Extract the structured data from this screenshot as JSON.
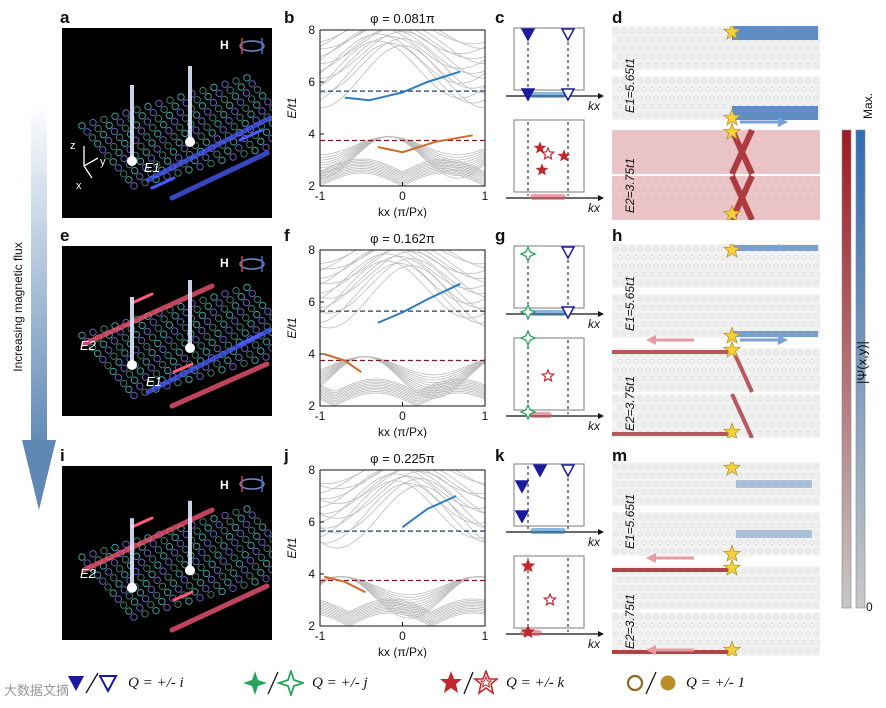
{
  "panel_labels": [
    "a",
    "b",
    "c",
    "d",
    "e",
    "f",
    "g",
    "h",
    "i",
    "j",
    "k",
    "m"
  ],
  "render_panels": [
    {
      "id": "a",
      "h_label": "H",
      "axes": {
        "z": "z",
        "y": "y",
        "x": "x"
      },
      "energy_labels": [
        "E1"
      ]
    },
    {
      "id": "e",
      "h_label": "H",
      "energy_labels": [
        "E2",
        "E1"
      ]
    },
    {
      "id": "i",
      "h_label": "H",
      "energy_labels": [
        "E2"
      ]
    }
  ],
  "side_arrow_label": "Increasing magnetic flux",
  "band_panels": [
    {
      "id": "b",
      "phi_label": "φ = 0.081π",
      "ylabel": "E/t1",
      "xlabel": "kx (π/Px)",
      "yticks": [
        "8",
        "6",
        "4",
        "2"
      ],
      "xticks": [
        "-1",
        "0",
        "1"
      ]
    },
    {
      "id": "f",
      "phi_label": "φ = 0.162π",
      "ylabel": "E/t1",
      "xlabel": "kx (π/Px)",
      "yticks": [
        "8",
        "6",
        "4",
        "2"
      ],
      "xticks": [
        "-1",
        "0",
        "1"
      ]
    },
    {
      "id": "j",
      "phi_label": "φ = 0.225π",
      "ylabel": "E/t1",
      "xlabel": "kx (π/Px)",
      "yticks": [
        "8",
        "6",
        "4",
        "2"
      ],
      "xticks": [
        "-1",
        "0",
        "1"
      ]
    }
  ],
  "bz_panels": [
    {
      "id": "c",
      "axis_label": "kx"
    },
    {
      "id": "g",
      "axis_label": "kx"
    },
    {
      "id": "k",
      "axis_label": "kx"
    }
  ],
  "wave_panels": [
    {
      "id": "d",
      "top_label": "E1=5.65t1",
      "bottom_label": "E2=3.75t1"
    },
    {
      "id": "h",
      "top_label": "E1=5.65t1",
      "bottom_label": "E2=3.75t1"
    },
    {
      "id": "m",
      "top_label": "E1=5.65t1",
      "bottom_label": "E2=3.75t1"
    }
  ],
  "colorbar": {
    "max_label": "Max.",
    "min_label": "0",
    "title": "|Ψ(x,y)|",
    "red": "#9e1b20",
    "blue": "#2f6db5",
    "mid": "#ececec"
  },
  "legend": [
    {
      "q": "Q = +/- i",
      "color": "#1a1a9e"
    },
    {
      "q": "Q = +/- j",
      "color": "#2aa35a"
    },
    {
      "q": "Q = +/- k",
      "color": "#c0282d"
    },
    {
      "q": "Q = +/- 1",
      "color": "#b8902a"
    }
  ],
  "watermark": "大数据文摘",
  "chart_data": [
    {
      "type": "line",
      "title": "φ = 0.081π",
      "xlabel": "kx (π/Px)",
      "ylabel": "E/t1",
      "xlim": [
        -1,
        1
      ],
      "ylim": [
        2,
        8
      ],
      "reference_lines": [
        5.65,
        3.75
      ],
      "series": [
        {
          "name": "blue edge state",
          "x": [
            -0.7,
            -0.4,
            0,
            0.3,
            0.7
          ],
          "y": [
            5.4,
            5.3,
            5.6,
            6.0,
            6.4
          ]
        },
        {
          "name": "red edge state",
          "x": [
            -0.3,
            0,
            0.4,
            0.85
          ],
          "y": [
            3.5,
            3.3,
            3.7,
            3.95
          ]
        }
      ]
    },
    {
      "type": "line",
      "title": "φ = 0.162π",
      "xlabel": "kx (π/Px)",
      "ylabel": "E/t1",
      "xlim": [
        -1,
        1
      ],
      "ylim": [
        2,
        8
      ],
      "reference_lines": [
        5.65,
        3.75
      ],
      "series": [
        {
          "name": "blue edge state",
          "x": [
            -0.3,
            0,
            0.3,
            0.7
          ],
          "y": [
            5.2,
            5.6,
            6.1,
            6.7
          ]
        },
        {
          "name": "red edge state",
          "x": [
            -0.95,
            -0.7,
            -0.5
          ],
          "y": [
            4.0,
            3.75,
            3.3
          ]
        }
      ]
    },
    {
      "type": "line",
      "title": "φ = 0.225π",
      "xlabel": "kx (π/Px)",
      "ylabel": "E/t1",
      "xlim": [
        -1,
        1
      ],
      "ylim": [
        2,
        8
      ],
      "reference_lines": [
        5.65,
        3.75
      ],
      "series": [
        {
          "name": "blue edge state",
          "x": [
            0,
            0.3,
            0.65
          ],
          "y": [
            5.8,
            6.5,
            7.0
          ]
        },
        {
          "name": "red edge state",
          "x": [
            -0.95,
            -0.7,
            -0.45
          ],
          "y": [
            3.9,
            3.7,
            3.3
          ]
        }
      ]
    }
  ]
}
